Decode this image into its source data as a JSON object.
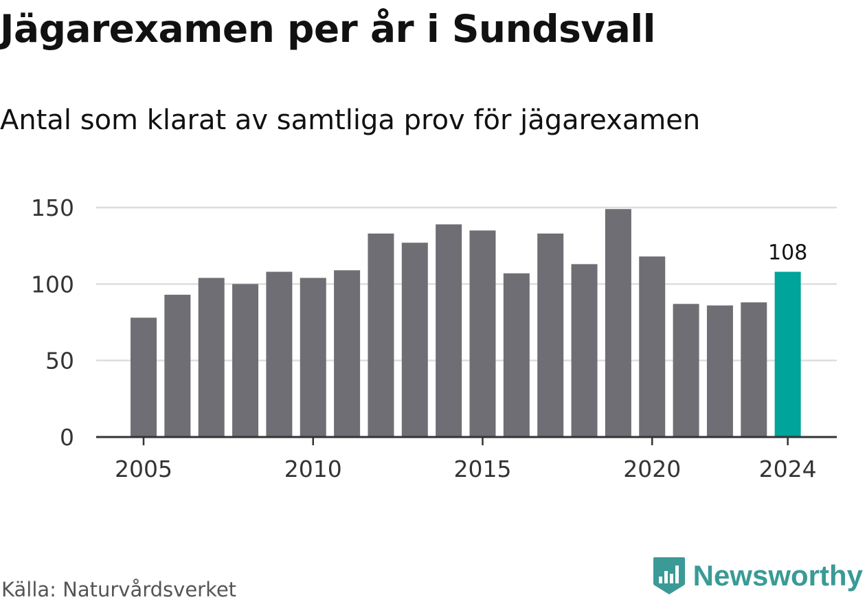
{
  "title": "Jägarexamen per år i Sundsvall",
  "subtitle": "Antal som klarat av samtliga prov för jägarexamen",
  "source": "Källa: Naturvårdsverket",
  "brand": {
    "name": "Newsworthy",
    "icon": "newsworthy-logo-icon",
    "color": "#3a9a96"
  },
  "colors": {
    "bar": "#6f6e74",
    "highlight": "#00a49a",
    "grid": "#dddddd",
    "axis": "#333333"
  },
  "chart_data": {
    "type": "bar",
    "categories": [
      "2005",
      "2006",
      "2007",
      "2008",
      "2009",
      "2010",
      "2011",
      "2012",
      "2013",
      "2014",
      "2015",
      "2016",
      "2017",
      "2018",
      "2019",
      "2020",
      "2021",
      "2022",
      "2023",
      "2024"
    ],
    "values": [
      78,
      93,
      104,
      100,
      108,
      104,
      109,
      133,
      127,
      139,
      135,
      107,
      133,
      113,
      149,
      118,
      87,
      86,
      88,
      108
    ],
    "x_tick_labels": [
      "2005",
      "2010",
      "2015",
      "2020",
      "2024"
    ],
    "y_ticks": [
      0,
      50,
      100,
      150
    ],
    "ylim": [
      0,
      150
    ],
    "highlight_index": 19,
    "annotations": [
      {
        "category": "2024",
        "text": "108"
      }
    ],
    "grid": true,
    "xlabel": "",
    "ylabel": ""
  }
}
